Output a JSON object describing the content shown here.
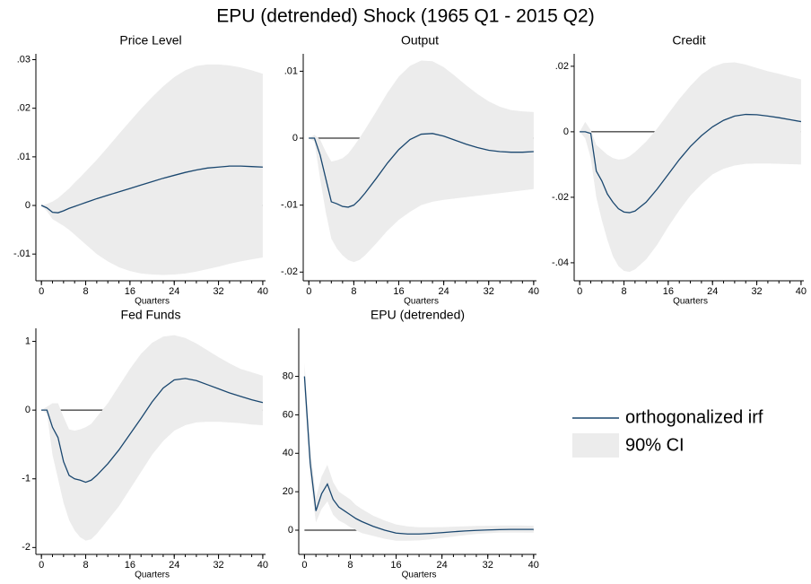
{
  "title": "EPU (detrended) Shock (1965 Q1 - 2015 Q2)",
  "legend": [
    {
      "name": "orthogonalized irf",
      "color": "#1a476f"
    },
    {
      "name": "90% CI",
      "color": "#ececec"
    }
  ],
  "chart_data": [
    {
      "type": "line",
      "title": "Price Level",
      "xlabel": "Quarters",
      "x": [
        0,
        1,
        2,
        3,
        4,
        5,
        6,
        7,
        8,
        9,
        10,
        12,
        14,
        16,
        18,
        20,
        22,
        24,
        26,
        28,
        30,
        32,
        34,
        36,
        38,
        40
      ],
      "series": [
        {
          "values": [
            0,
            -0.0005,
            -0.0014,
            -0.0015,
            -0.0011,
            -0.0006,
            -0.0002,
            0.0002,
            0.0006,
            0.001,
            0.0014,
            0.0021,
            0.0028,
            0.0035,
            0.0042,
            0.0049,
            0.0056,
            0.0062,
            0.0068,
            0.0073,
            0.0077,
            0.0079,
            0.0081,
            0.0081,
            0.008,
            0.0079
          ]
        }
      ],
      "band": {
        "upper": [
          0,
          0.0003,
          0.0008,
          0.0015,
          0.0025,
          0.0035,
          0.0047,
          0.0058,
          0.007,
          0.0082,
          0.0094,
          0.012,
          0.0147,
          0.0173,
          0.0199,
          0.0223,
          0.0245,
          0.0264,
          0.0278,
          0.0287,
          0.029,
          0.029,
          0.0288,
          0.0284,
          0.0278,
          0.0271
        ],
        "lower": [
          0,
          -0.0012,
          -0.0028,
          -0.0035,
          -0.0042,
          -0.005,
          -0.006,
          -0.007,
          -0.008,
          -0.009,
          -0.01,
          -0.0115,
          -0.0127,
          -0.0135,
          -0.014,
          -0.0142,
          -0.0143,
          -0.0142,
          -0.014,
          -0.0136,
          -0.0131,
          -0.0126,
          -0.012,
          -0.0115,
          -0.0111,
          -0.0107
        ]
      },
      "xlim": [
        -1,
        40.5
      ],
      "xticks": [
        0,
        8,
        16,
        24,
        32,
        40
      ],
      "minor_tick_step": 2,
      "ylim": [
        -0.0155,
        0.0312
      ],
      "yticks": [
        {
          "value": -0.01,
          "label": "-.01"
        },
        0,
        {
          "value": 0.01,
          "label": ".01"
        },
        {
          "value": 0.02,
          "label": ".02"
        },
        {
          "value": 0.03,
          "label": ".03"
        }
      ]
    },
    {
      "type": "line",
      "title": "Output",
      "xlabel": "Quarters",
      "x": [
        0,
        1,
        2,
        3,
        4,
        5,
        6,
        7,
        8,
        9,
        10,
        12,
        14,
        16,
        18,
        20,
        22,
        24,
        26,
        28,
        30,
        32,
        34,
        36,
        38,
        40
      ],
      "series": [
        {
          "values": [
            0,
            0,
            -0.0025,
            -0.006,
            -0.0095,
            -0.0098,
            -0.0102,
            -0.0103,
            -0.01,
            -0.0092,
            -0.0082,
            -0.006,
            -0.0037,
            -0.0017,
            -0.0002,
            0.0006,
            0.0007,
            0.0003,
            -0.0003,
            -0.0009,
            -0.0014,
            -0.0018,
            -0.002,
            -0.0021,
            -0.0021,
            -0.002
          ]
        }
      ],
      "band": {
        "upper": [
          0,
          0.0005,
          -0.0002,
          -0.002,
          -0.0035,
          -0.0033,
          -0.003,
          -0.0023,
          -0.0012,
          0,
          0.0013,
          0.004,
          0.0068,
          0.0092,
          0.0108,
          0.0116,
          0.0115,
          0.0106,
          0.0093,
          0.0079,
          0.0066,
          0.0055,
          0.0047,
          0.0042,
          0.004,
          0.0039
        ],
        "lower": [
          0,
          -0.0005,
          -0.006,
          -0.011,
          -0.015,
          -0.0165,
          -0.0175,
          -0.0182,
          -0.0185,
          -0.0182,
          -0.0175,
          -0.0157,
          -0.0138,
          -0.0122,
          -0.011,
          -0.01,
          -0.0095,
          -0.0092,
          -0.009,
          -0.0088,
          -0.0086,
          -0.0084,
          -0.0082,
          -0.008,
          -0.0078,
          -0.0076
        ]
      },
      "xlim": [
        -1,
        40.5
      ],
      "xticks": [
        0,
        8,
        16,
        24,
        32,
        40
      ],
      "minor_tick_step": 2,
      "ylim": [
        -0.0213,
        0.0126
      ],
      "yticks": [
        {
          "value": -0.02,
          "label": "-.02"
        },
        {
          "value": -0.01,
          "label": "-.01"
        },
        0,
        {
          "value": 0.01,
          "label": ".01"
        }
      ]
    },
    {
      "type": "line",
      "title": "Credit",
      "xlabel": "Quarters",
      "x": [
        0,
        1,
        2,
        3,
        4,
        5,
        6,
        7,
        8,
        9,
        10,
        12,
        14,
        16,
        18,
        20,
        22,
        24,
        26,
        28,
        30,
        32,
        34,
        36,
        38,
        40
      ],
      "series": [
        {
          "values": [
            0,
            0,
            -0.0005,
            -0.012,
            -0.015,
            -0.019,
            -0.0215,
            -0.0235,
            -0.0245,
            -0.0247,
            -0.0242,
            -0.0215,
            -0.0175,
            -0.013,
            -0.0085,
            -0.0045,
            -0.0012,
            0.0015,
            0.0035,
            0.0048,
            0.0053,
            0.0052,
            0.0048,
            0.0043,
            0.0037,
            0.0031
          ]
        }
      ],
      "band": {
        "upper": [
          0,
          0.003,
          0.0005,
          -0.004,
          -0.0055,
          -0.007,
          -0.008,
          -0.0085,
          -0.0083,
          -0.0075,
          -0.0062,
          -0.003,
          0.001,
          0.0055,
          0.01,
          0.014,
          0.0175,
          0.0198,
          0.021,
          0.0212,
          0.0205,
          0.0195,
          0.0185,
          0.0177,
          0.0168,
          0.016
        ],
        "lower": [
          0,
          -0.002,
          -0.008,
          -0.02,
          -0.027,
          -0.033,
          -0.038,
          -0.041,
          -0.0425,
          -0.0428,
          -0.042,
          -0.039,
          -0.0345,
          -0.029,
          -0.024,
          -0.0195,
          -0.016,
          -0.013,
          -0.0113,
          -0.0103,
          -0.0098,
          -0.0097,
          -0.0097,
          -0.0098,
          -0.0099,
          -0.01
        ]
      },
      "xlim": [
        -1,
        40.5
      ],
      "xticks": [
        0,
        8,
        16,
        24,
        32,
        40
      ],
      "minor_tick_step": 2,
      "ylim": [
        -0.0455,
        0.0238
      ],
      "yticks": [
        {
          "value": -0.04,
          "label": "-.04"
        },
        {
          "value": -0.02,
          "label": "-.02"
        },
        0,
        {
          "value": 0.02,
          "label": ".02"
        }
      ]
    },
    {
      "type": "line",
      "title": "Fed Funds",
      "xlabel": "Quarters",
      "x": [
        0,
        1,
        2,
        3,
        4,
        5,
        6,
        7,
        8,
        9,
        10,
        12,
        14,
        16,
        18,
        20,
        22,
        24,
        26,
        28,
        30,
        32,
        34,
        36,
        38,
        40
      ],
      "series": [
        {
          "values": [
            0,
            0,
            -0.25,
            -0.4,
            -0.75,
            -0.95,
            -1.0,
            -1.02,
            -1.05,
            -1.02,
            -0.95,
            -0.78,
            -0.58,
            -0.35,
            -0.12,
            0.12,
            0.32,
            0.44,
            0.46,
            0.43,
            0.37,
            0.31,
            0.25,
            0.2,
            0.15,
            0.11
          ]
        }
      ],
      "band": {
        "upper": [
          0,
          0.05,
          0.1,
          0.1,
          -0.1,
          -0.28,
          -0.3,
          -0.28,
          -0.25,
          -0.2,
          -0.1,
          0.1,
          0.35,
          0.6,
          0.82,
          0.98,
          1.07,
          1.09,
          1.05,
          0.97,
          0.87,
          0.77,
          0.68,
          0.6,
          0.55,
          0.5
        ],
        "lower": [
          0,
          -0.05,
          -0.65,
          -1.0,
          -1.35,
          -1.6,
          -1.75,
          -1.85,
          -1.9,
          -1.88,
          -1.8,
          -1.6,
          -1.4,
          -1.15,
          -0.9,
          -0.65,
          -0.45,
          -0.3,
          -0.22,
          -0.18,
          -0.17,
          -0.17,
          -0.18,
          -0.19,
          -0.21,
          -0.22
        ]
      },
      "xlim": [
        -1,
        40.5
      ],
      "xticks": [
        0,
        8,
        16,
        24,
        32,
        40
      ],
      "minor_tick_step": 2,
      "ylim": [
        -2.1,
        1.19
      ],
      "yticks": [
        -2,
        -1,
        0,
        1
      ]
    },
    {
      "type": "line",
      "title": "EPU (detrended)",
      "xlabel": "Quarters",
      "x": [
        0,
        1,
        2,
        3,
        4,
        5,
        6,
        7,
        8,
        9,
        10,
        12,
        14,
        16,
        18,
        20,
        22,
        24,
        26,
        28,
        30,
        32,
        34,
        36,
        38,
        40
      ],
      "series": [
        {
          "values": [
            80,
            35,
            10,
            19,
            24,
            16,
            12,
            10,
            8,
            6,
            4.5,
            2,
            0,
            -1.5,
            -2,
            -2,
            -1.7,
            -1.3,
            -0.8,
            -0.4,
            -0.1,
            0.1,
            0.3,
            0.4,
            0.4,
            0.4
          ]
        }
      ],
      "band": {
        "upper": [
          87,
          43,
          17,
          28,
          34,
          25,
          20,
          18,
          16,
          13,
          11,
          7.5,
          5,
          3,
          2,
          1.5,
          1.5,
          1.6,
          1.8,
          2,
          2.2,
          2.3,
          2.4,
          2.4,
          2.4,
          2.3
        ],
        "lower": [
          73,
          27,
          4,
          11,
          15,
          8,
          5,
          3.5,
          1.5,
          0,
          -1.5,
          -3,
          -4.5,
          -5.5,
          -5.5,
          -5.3,
          -4.8,
          -4,
          -3.3,
          -2.6,
          -2,
          -1.6,
          -1.3,
          -1.2,
          -1.2,
          -1.3
        ]
      },
      "xlim": [
        -1,
        40.5
      ],
      "xticks": [
        0,
        8,
        16,
        24,
        32,
        40
      ],
      "minor_tick_step": 2,
      "ylim": [
        -12.6,
        105
      ],
      "yticks": [
        0,
        20,
        40,
        60,
        80
      ]
    }
  ]
}
